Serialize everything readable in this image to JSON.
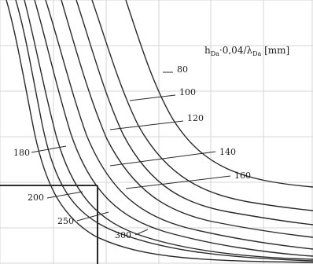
{
  "chart_data": {
    "type": "line",
    "title": "",
    "xlabel": "",
    "ylabel": "",
    "grid": true,
    "legend_title": {
      "main": "h",
      "main_sub": "Da",
      "mid": "·0,04/λ",
      "mid_sub": "Da",
      "unit": " [mm]"
    },
    "series": [
      {
        "name": "80",
        "points": [
          [
            8,
            0
          ],
          [
            24,
            120
          ],
          [
            43,
            230
          ],
          [
            58,
            300
          ]
        ]
      },
      {
        "name": "100",
        "points": [
          [
            13,
            0
          ],
          [
            28,
            110
          ],
          [
            50,
            220
          ],
          [
            80,
            300
          ]
        ]
      },
      {
        "name": "120",
        "points": [
          [
            17,
            0
          ],
          [
            33,
            110
          ],
          [
            58,
            220
          ],
          [
            90,
            300
          ]
        ]
      },
      {
        "name": "140",
        "points": [
          [
            22,
            0
          ],
          [
            40,
            110
          ],
          [
            67,
            220
          ],
          [
            105,
            300
          ]
        ]
      },
      {
        "name": "160",
        "points": [
          [
            27,
            0
          ],
          [
            48,
            110
          ],
          [
            78,
            220
          ],
          [
            120,
            300
          ]
        ]
      },
      {
        "name": "180",
        "points": [
          [
            3,
            0
          ],
          [
            15,
            110
          ],
          [
            32,
            220
          ],
          [
            50,
            300
          ]
        ]
      },
      {
        "name": "200",
        "points": [
          [
            35,
            0
          ],
          [
            58,
            110
          ],
          [
            90,
            220
          ],
          [
            140,
            300
          ]
        ]
      },
      {
        "name": "250",
        "points": [
          [
            41,
            0
          ],
          [
            66,
            110
          ],
          [
            102,
            220
          ],
          [
            160,
            300
          ]
        ]
      },
      {
        "name": "300",
        "points": [
          [
            46,
            0
          ],
          [
            75,
            110
          ],
          [
            115,
            220
          ],
          [
            180,
            300
          ]
        ]
      }
    ],
    "series_labels": [
      {
        "text": "80",
        "series": "80"
      },
      {
        "text": "100",
        "series": "100"
      },
      {
        "text": "120",
        "series": "120"
      },
      {
        "text": "180",
        "series": "180"
      },
      {
        "text": "140",
        "series": "140"
      },
      {
        "text": "160",
        "series": "160"
      },
      {
        "text": "200",
        "series": "200"
      },
      {
        "text": "250",
        "series": "250"
      },
      {
        "text": "300",
        "series": "300"
      }
    ],
    "reference_lines": [
      {
        "name": "horizontal-reference",
        "y": 0.78
      },
      {
        "name": "vertical-reference",
        "x": 0.31
      }
    ],
    "colors": {
      "grid": "#d5d5d5",
      "curve": "#2a2a2a",
      "reference": "#111111",
      "label": "#1a1a1a",
      "highlight": "#f3f5f1"
    }
  }
}
